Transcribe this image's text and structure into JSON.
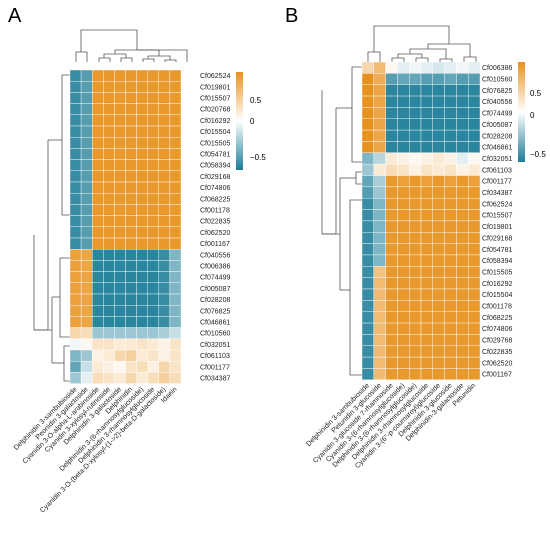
{
  "colors": {
    "high": "#e8921e",
    "mid": "#ffffff",
    "low": "#1c7d98"
  },
  "chart_data": [
    {
      "type": "heatmap",
      "panel_label": "A",
      "rows": [
        "Cf062524",
        "Cf019801",
        "Cf015507",
        "Cf020768",
        "Cf016292",
        "Cf015504",
        "Cf015505",
        "Cf054781",
        "Cf058394",
        "Cf029168",
        "Cf074806",
        "Cf068225",
        "Cf001178",
        "Cf022835",
        "Cf062520",
        "Cf001167",
        "Cf040556",
        "Cf006386",
        "Cf074499",
        "Cf005087",
        "Cf028208",
        "Cf076825",
        "Cf046861",
        "Cf010560",
        "Cf032051",
        "Cf061103",
        "Cf001177",
        "Cf034387"
      ],
      "columns": [
        "Delphinidin 3-sambubioside",
        "Peonidin 3-galactoside",
        "Cyanidin 3-O-alpha-L-arabinoside",
        "Cyanidin 3-xylosyl-rutinoside",
        "Delphinidin 3-galactoside",
        "Delphinidin",
        "Delphinidin 3-(6-rhamnosylglucoside)",
        "Delphinidin 3-rhamnosylglucoside",
        "Cyanidin 3-O-(beta-D-xylosyl-(1->2)-beta-D-galactoside)",
        "Idaein"
      ],
      "values": [
        [
          -0.7,
          -0.6,
          0.75,
          0.75,
          0.75,
          0.75,
          0.75,
          0.75,
          0.75,
          0.75
        ],
        [
          -0.7,
          -0.6,
          0.75,
          0.75,
          0.75,
          0.75,
          0.75,
          0.75,
          0.75,
          0.75
        ],
        [
          -0.7,
          -0.6,
          0.75,
          0.75,
          0.75,
          0.75,
          0.75,
          0.75,
          0.75,
          0.75
        ],
        [
          -0.7,
          -0.6,
          0.75,
          0.75,
          0.75,
          0.75,
          0.75,
          0.75,
          0.75,
          0.75
        ],
        [
          -0.7,
          -0.6,
          0.75,
          0.75,
          0.75,
          0.75,
          0.75,
          0.75,
          0.75,
          0.75
        ],
        [
          -0.7,
          -0.6,
          0.75,
          0.75,
          0.75,
          0.75,
          0.75,
          0.75,
          0.75,
          0.75
        ],
        [
          -0.7,
          -0.6,
          0.75,
          0.75,
          0.75,
          0.75,
          0.75,
          0.75,
          0.75,
          0.75
        ],
        [
          -0.7,
          -0.6,
          0.75,
          0.75,
          0.75,
          0.75,
          0.75,
          0.75,
          0.75,
          0.75
        ],
        [
          -0.7,
          -0.6,
          0.75,
          0.75,
          0.75,
          0.75,
          0.75,
          0.75,
          0.75,
          0.75
        ],
        [
          -0.7,
          -0.6,
          0.75,
          0.75,
          0.75,
          0.75,
          0.75,
          0.75,
          0.75,
          0.75
        ],
        [
          -0.7,
          -0.6,
          0.75,
          0.75,
          0.75,
          0.75,
          0.75,
          0.75,
          0.75,
          0.75
        ],
        [
          -0.7,
          -0.6,
          0.75,
          0.75,
          0.75,
          0.75,
          0.75,
          0.75,
          0.75,
          0.75
        ],
        [
          -0.7,
          -0.6,
          0.75,
          0.75,
          0.75,
          0.75,
          0.75,
          0.75,
          0.75,
          0.75
        ],
        [
          -0.7,
          -0.6,
          0.75,
          0.75,
          0.75,
          0.75,
          0.75,
          0.75,
          0.75,
          0.75
        ],
        [
          -0.7,
          -0.6,
          0.75,
          0.75,
          0.75,
          0.75,
          0.75,
          0.75,
          0.75,
          0.75
        ],
        [
          -0.7,
          -0.6,
          0.75,
          0.75,
          0.75,
          0.75,
          0.75,
          0.75,
          0.75,
          0.75
        ],
        [
          0.7,
          0.65,
          -0.75,
          -0.75,
          -0.75,
          -0.75,
          -0.75,
          -0.75,
          -0.7,
          -0.45
        ],
        [
          0.7,
          0.65,
          -0.75,
          -0.75,
          -0.75,
          -0.75,
          -0.75,
          -0.75,
          -0.7,
          -0.45
        ],
        [
          0.7,
          0.65,
          -0.75,
          -0.75,
          -0.75,
          -0.75,
          -0.75,
          -0.75,
          -0.7,
          -0.45
        ],
        [
          0.7,
          0.65,
          -0.75,
          -0.75,
          -0.75,
          -0.75,
          -0.75,
          -0.75,
          -0.7,
          -0.45
        ],
        [
          0.7,
          0.65,
          -0.75,
          -0.75,
          -0.75,
          -0.75,
          -0.75,
          -0.75,
          -0.7,
          -0.45
        ],
        [
          0.7,
          0.65,
          -0.75,
          -0.75,
          -0.75,
          -0.75,
          -0.75,
          -0.75,
          -0.7,
          -0.45
        ],
        [
          0.7,
          0.65,
          -0.75,
          -0.75,
          -0.75,
          -0.75,
          -0.75,
          -0.75,
          -0.7,
          -0.45
        ],
        [
          0.3,
          0.25,
          -0.35,
          -0.35,
          -0.35,
          -0.35,
          -0.35,
          -0.35,
          -0.3,
          -0.2
        ],
        [
          -0.05,
          0.05,
          0.2,
          0.2,
          0.15,
          0.15,
          0.2,
          0.15,
          0.1,
          0.2
        ],
        [
          -0.45,
          -0.35,
          0.1,
          0.15,
          0.3,
          0.35,
          0.15,
          0.2,
          0.1,
          0.2
        ],
        [
          -0.55,
          -0.2,
          0.15,
          0.1,
          0.05,
          0.2,
          0.25,
          0.1,
          0.3,
          0.2
        ],
        [
          -0.35,
          -0.1,
          0.25,
          0.2,
          0.15,
          0.3,
          0.15,
          0.25,
          0.35,
          0.25
        ]
      ],
      "colorbar_ticks": [
        "0.5",
        "0",
        "−0.5"
      ],
      "vlim": [
        -0.8,
        0.8
      ]
    },
    {
      "type": "heatmap",
      "panel_label": "B",
      "rows": [
        "Cf006386",
        "Cf010560",
        "Cf076825",
        "Cf040556",
        "Cf074499",
        "Cf005087",
        "Cf028208",
        "Cf046861",
        "Cf032051",
        "Cf061103",
        "Cf001177",
        "Cf034387",
        "Cf062524",
        "Cf015507",
        "Cf019801",
        "Cf029168",
        "Cf054781",
        "Cf058394",
        "Cf015505",
        "Cf016292",
        "Cf015504",
        "Cf001178",
        "Cf068225",
        "Cf074806",
        "Cf029768",
        "Cf022835",
        "Cf062520",
        "Cf001167"
      ],
      "columns": [
        "Delphinidin 3-sambubioside",
        "Petunidin 3-glucoside",
        "Cyanidin 3-glucoside 7-rhamnoside",
        "Cyanidin 3-(6-rhamnosylglucoside)",
        "Delphinidin 3-(6-rhamnosylglucoside)",
        "Delphinidin 3-rhamnosylglucoside",
        "Cyanidin 3-(6''-p-coumaroyl)glucoside",
        "Delphinidin 3-glucoside",
        "Delphinidin-3-galactoside",
        "Petunidin"
      ],
      "values": [
        [
          0.3,
          0.5,
          0.05,
          -0.1,
          -0.05,
          -0.1,
          -0.15,
          -0.1,
          -0.05,
          -0.1
        ],
        [
          0.8,
          0.6,
          -0.6,
          -0.55,
          -0.55,
          -0.6,
          -0.6,
          -0.55,
          -0.6,
          -0.6
        ],
        [
          0.8,
          0.65,
          -0.75,
          -0.75,
          -0.75,
          -0.75,
          -0.75,
          -0.75,
          -0.75,
          -0.75
        ],
        [
          0.8,
          0.65,
          -0.75,
          -0.75,
          -0.75,
          -0.75,
          -0.75,
          -0.75,
          -0.75,
          -0.75
        ],
        [
          0.8,
          0.65,
          -0.75,
          -0.75,
          -0.75,
          -0.75,
          -0.75,
          -0.75,
          -0.75,
          -0.75
        ],
        [
          0.8,
          0.65,
          -0.75,
          -0.75,
          -0.75,
          -0.75,
          -0.75,
          -0.75,
          -0.75,
          -0.75
        ],
        [
          0.8,
          0.65,
          -0.75,
          -0.75,
          -0.75,
          -0.75,
          -0.75,
          -0.75,
          -0.75,
          -0.75
        ],
        [
          0.8,
          0.65,
          -0.75,
          -0.75,
          -0.75,
          -0.75,
          -0.75,
          -0.75,
          -0.75,
          -0.75
        ],
        [
          -0.45,
          -0.25,
          0.15,
          0.1,
          0.05,
          0.1,
          0.15,
          0.1,
          -0.1,
          0.05
        ],
        [
          -0.35,
          0.15,
          0.25,
          0.2,
          0.1,
          0.2,
          0.15,
          0.2,
          0.1,
          0.15
        ],
        [
          -0.55,
          -0.3,
          0.75,
          0.7,
          0.75,
          0.7,
          0.75,
          0.7,
          0.75,
          0.7
        ],
        [
          -0.6,
          -0.35,
          0.75,
          0.75,
          0.75,
          0.75,
          0.75,
          0.75,
          0.75,
          0.75
        ],
        [
          -0.7,
          -0.45,
          0.75,
          0.75,
          0.75,
          0.75,
          0.75,
          0.75,
          0.75,
          0.75
        ],
        [
          -0.7,
          -0.45,
          0.75,
          0.75,
          0.75,
          0.75,
          0.75,
          0.75,
          0.75,
          0.75
        ],
        [
          -0.7,
          -0.45,
          0.75,
          0.75,
          0.75,
          0.75,
          0.75,
          0.75,
          0.75,
          0.75
        ],
        [
          -0.7,
          -0.45,
          0.75,
          0.75,
          0.75,
          0.75,
          0.75,
          0.75,
          0.75,
          0.75
        ],
        [
          -0.7,
          -0.45,
          0.75,
          0.75,
          0.75,
          0.75,
          0.75,
          0.75,
          0.75,
          0.75
        ],
        [
          -0.7,
          -0.45,
          0.75,
          0.75,
          0.75,
          0.75,
          0.75,
          0.75,
          0.75,
          0.75
        ],
        [
          -0.7,
          0.45,
          0.75,
          0.75,
          0.75,
          0.75,
          0.75,
          0.75,
          0.75,
          0.75
        ],
        [
          -0.7,
          0.5,
          0.75,
          0.75,
          0.75,
          0.75,
          0.75,
          0.75,
          0.75,
          0.75
        ],
        [
          -0.7,
          0.5,
          0.75,
          0.75,
          0.75,
          0.75,
          0.75,
          0.75,
          0.75,
          0.75
        ],
        [
          -0.7,
          0.5,
          0.75,
          0.75,
          0.75,
          0.75,
          0.75,
          0.75,
          0.75,
          0.75
        ],
        [
          -0.7,
          0.5,
          0.75,
          0.75,
          0.75,
          0.75,
          0.75,
          0.75,
          0.75,
          0.75
        ],
        [
          -0.7,
          0.5,
          0.75,
          0.75,
          0.75,
          0.75,
          0.75,
          0.75,
          0.75,
          0.75
        ],
        [
          -0.7,
          0.5,
          0.75,
          0.75,
          0.75,
          0.75,
          0.75,
          0.75,
          0.75,
          0.75
        ],
        [
          -0.7,
          0.5,
          0.75,
          0.75,
          0.75,
          0.75,
          0.75,
          0.75,
          0.75,
          0.75
        ],
        [
          -0.7,
          0.5,
          0.75,
          0.75,
          0.75,
          0.75,
          0.75,
          0.75,
          0.75,
          0.75
        ],
        [
          -0.7,
          0.5,
          0.75,
          0.75,
          0.75,
          0.75,
          0.75,
          0.75,
          0.75,
          0.75
        ]
      ],
      "colorbar_ticks": [
        "0.5",
        "0",
        "−0.5"
      ],
      "vlim": [
        -0.8,
        0.8
      ]
    }
  ]
}
